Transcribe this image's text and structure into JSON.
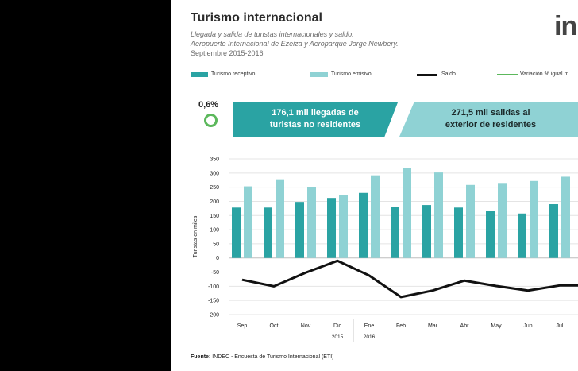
{
  "header": {
    "title": "Turismo internacional",
    "subtitle_1": "Llegada y salida de turistas internacionales y saldo.",
    "subtitle_2": "Aeropuerto Internacional de Ezeiza y Aeroparque Jorge Newbery.",
    "period": "Septiembre 2015-2016",
    "logo_text": "in"
  },
  "legend": [
    {
      "label": "Turismo receptivo",
      "color": "#2aa3a3",
      "kind": "bar"
    },
    {
      "label": "Turismo emisivo",
      "color": "#8fd2d4",
      "kind": "bar"
    },
    {
      "label": "Saldo",
      "color": "#111111",
      "kind": "line"
    },
    {
      "label": "Variación % igual m",
      "color": "#5cb85c",
      "kind": "line"
    }
  ],
  "kpi": {
    "variation": "0,6%",
    "arrivals_line1": "176,1 mil llegadas de",
    "arrivals_line2": "turistas no residentes",
    "departures_line1": "271,5 mil salidas al",
    "departures_line2": "exterior de residentes"
  },
  "source": {
    "label": "Fuente:",
    "text": "INDEC - Encuesta de Turismo Internacional (ETI)"
  },
  "chart_data": {
    "type": "bar",
    "categories": [
      "Sep",
      "Oct",
      "Nov",
      "Dic",
      "Ene",
      "Feb",
      "Mar",
      "Abr",
      "May",
      "Jun",
      "Jul"
    ],
    "year_labels": [
      {
        "label": "2015",
        "category": "Dic"
      },
      {
        "label": "2016",
        "category": "Ene"
      }
    ],
    "series": [
      {
        "name": "Turismo receptivo",
        "type": "bar",
        "color": "#2aa3a3",
        "values": [
          178,
          178,
          198,
          212,
          230,
          180,
          187,
          178,
          166,
          157,
          190
        ]
      },
      {
        "name": "Turismo emisivo",
        "type": "bar",
        "color": "#8fd2d4",
        "values": [
          253,
          278,
          250,
          222,
          292,
          318,
          302,
          258,
          265,
          272,
          287
        ]
      },
      {
        "name": "Saldo",
        "type": "line",
        "color": "#111111",
        "values": [
          -77,
          -100,
          -52,
          -10,
          -62,
          -138,
          -115,
          -80,
          -99,
          -115,
          -97
        ]
      }
    ],
    "ylabel": "Turistas en miles",
    "xlabel": "",
    "ylim": [
      -200,
      350
    ],
    "yticks": [
      350,
      300,
      250,
      200,
      150,
      100,
      50,
      0,
      -50,
      -100,
      -150,
      -200
    ],
    "grid": true
  }
}
